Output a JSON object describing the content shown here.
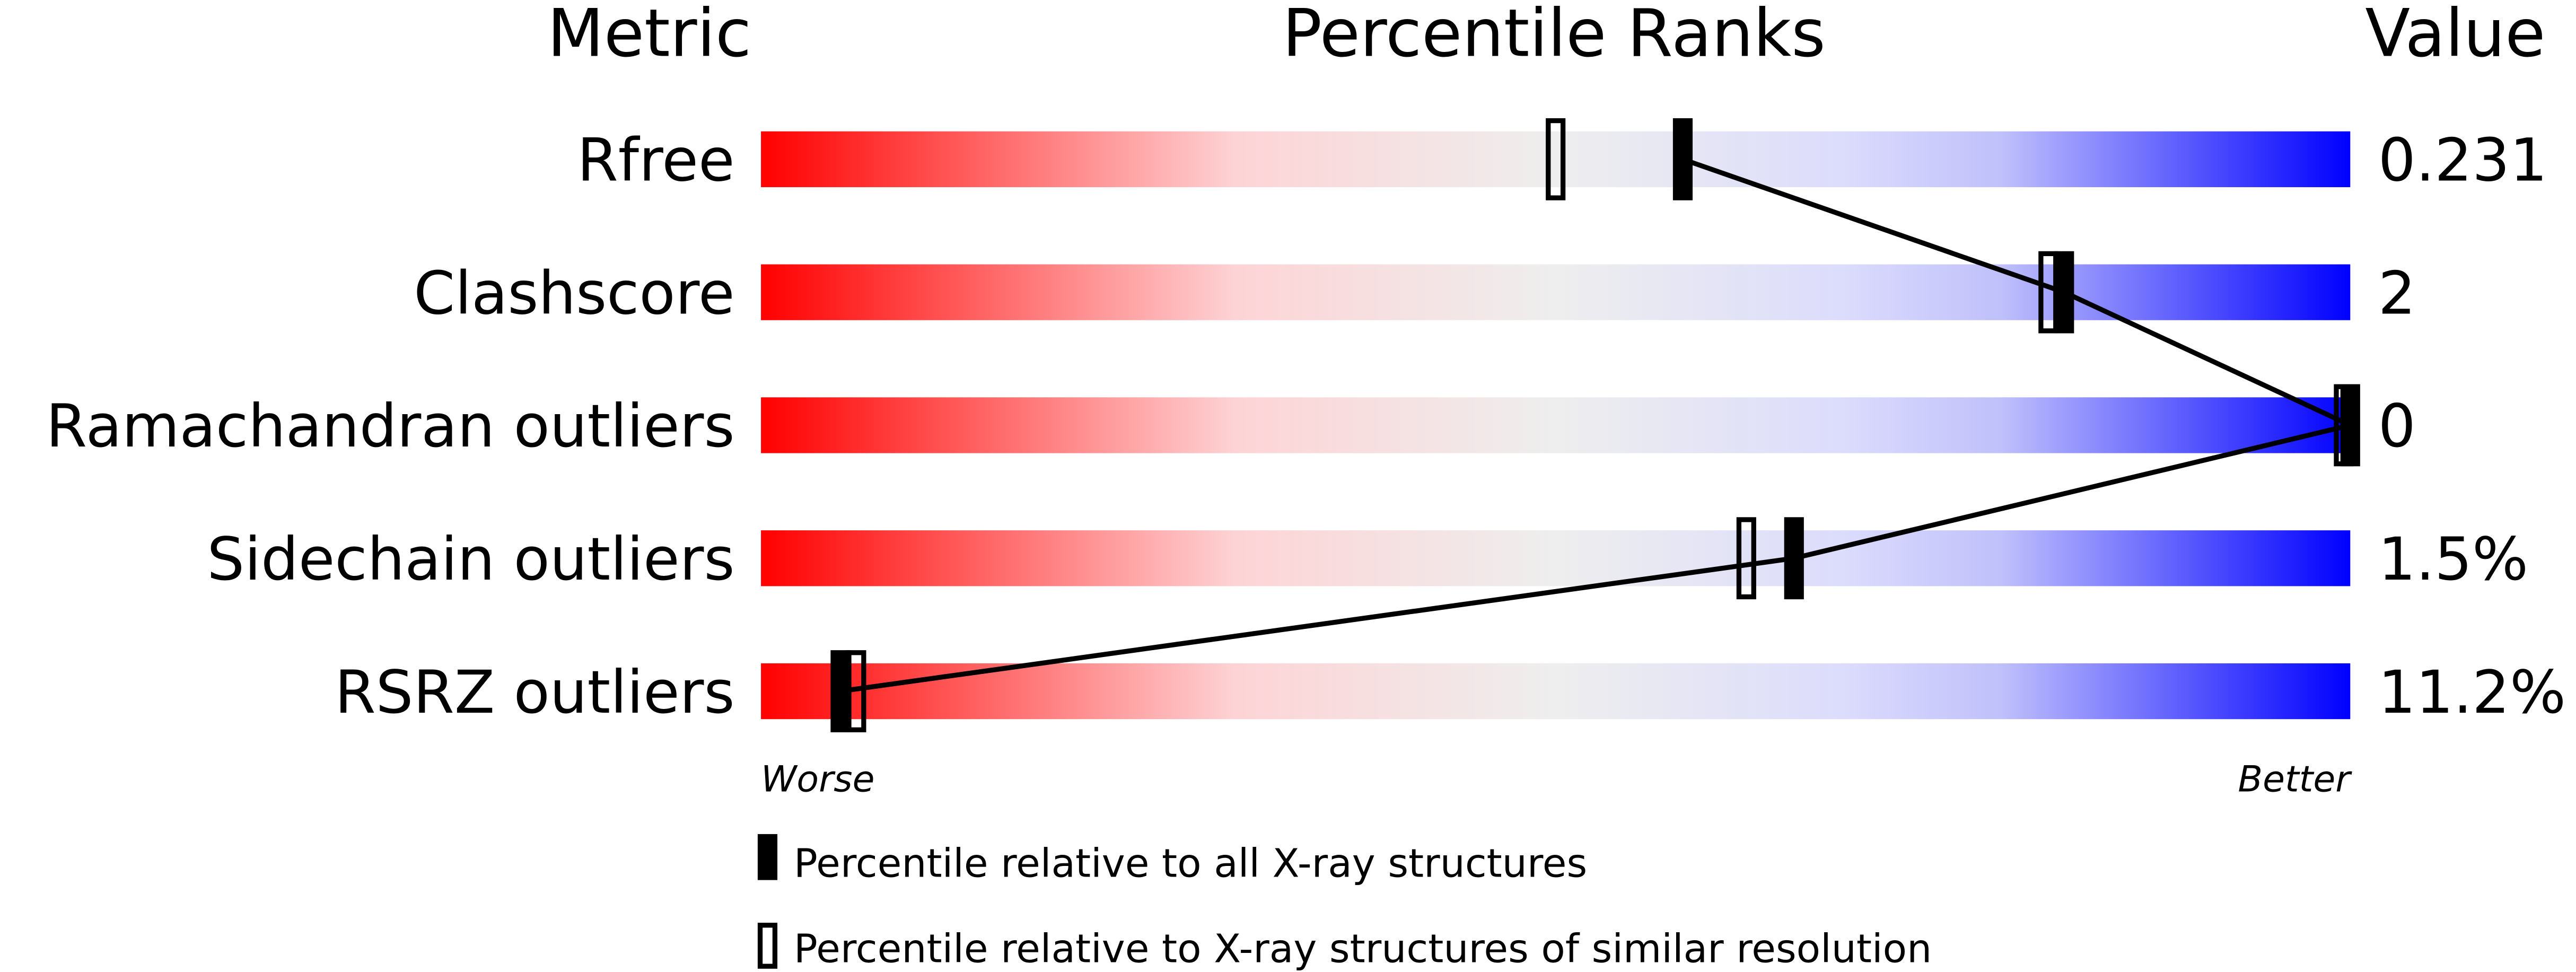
{
  "chart_data": {
    "type": "percentile-slider",
    "headers": {
      "metric": "Metric",
      "ranks": "Percentile Ranks",
      "value": "Value"
    },
    "xlim": [
      0,
      100
    ],
    "metrics": [
      {
        "name": "Rfree",
        "value": "0.231",
        "percentile_all": 58,
        "percentile_similar": 50
      },
      {
        "name": "Clashscore",
        "value": "2",
        "percentile_all": 82,
        "percentile_similar": 81
      },
      {
        "name": "Ramachandran outliers",
        "value": "0",
        "percentile_all": 100,
        "percentile_similar": 100
      },
      {
        "name": "Sidechain outliers",
        "value": "1.5%",
        "percentile_all": 65,
        "percentile_similar": 62
      },
      {
        "name": "RSRZ outliers",
        "value": "11.2%",
        "percentile_all": 5,
        "percentile_similar": 6
      }
    ],
    "axis_left_label": "Worse",
    "axis_right_label": "Better",
    "legend": {
      "all": "Percentile relative to all X-ray structures",
      "similar": "Percentile relative to X-ray structures of similar resolution"
    },
    "colors": {
      "worse": "#ff0000",
      "middle": "#eeeeee",
      "better": "#0000ff",
      "marker": "#000000"
    }
  }
}
